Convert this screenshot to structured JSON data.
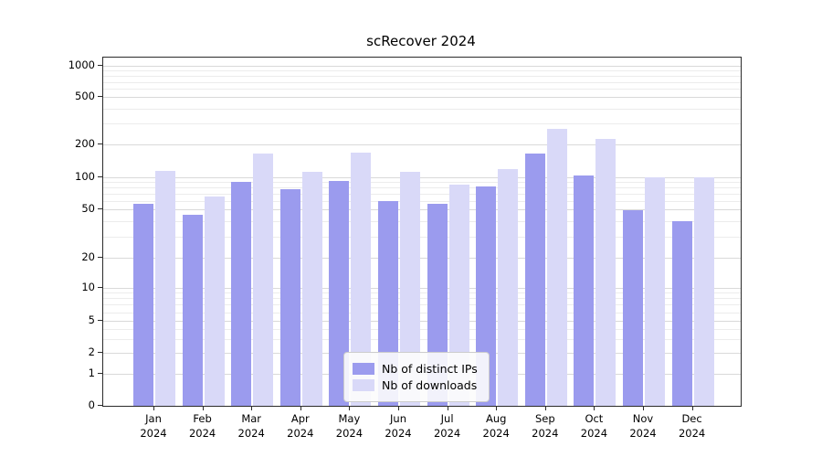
{
  "chart_data": {
    "type": "bar",
    "title": "scRecover 2024",
    "categories": [
      "Jan",
      "Feb",
      "Mar",
      "Apr",
      "May",
      "Jun",
      "Jul",
      "Aug",
      "Sep",
      "Oct",
      "Nov",
      "Dec"
    ],
    "category_year": "2024",
    "series": [
      {
        "name": "Nb of distinct IPs",
        "color": "#9b9bee",
        "values": [
          57,
          45,
          90,
          77,
          92,
          60,
          56,
          82,
          165,
          105,
          49,
          40
        ]
      },
      {
        "name": "Nb of downloads",
        "color": "#d9d9f8",
        "values": [
          115,
          66,
          165,
          112,
          168,
          113,
          86,
          120,
          270,
          220,
          100,
          100
        ]
      }
    ],
    "yscale": "symlog",
    "yticks": [
      0,
      1,
      2,
      5,
      10,
      20,
      50,
      100,
      200,
      500,
      1000
    ],
    "yminor": [
      3,
      4,
      6,
      7,
      8,
      9,
      30,
      40,
      60,
      70,
      80,
      90,
      300,
      400,
      600,
      700,
      800,
      900
    ],
    "ylim": [
      0,
      1000
    ],
    "grid": true,
    "legend_position": "lower center"
  }
}
